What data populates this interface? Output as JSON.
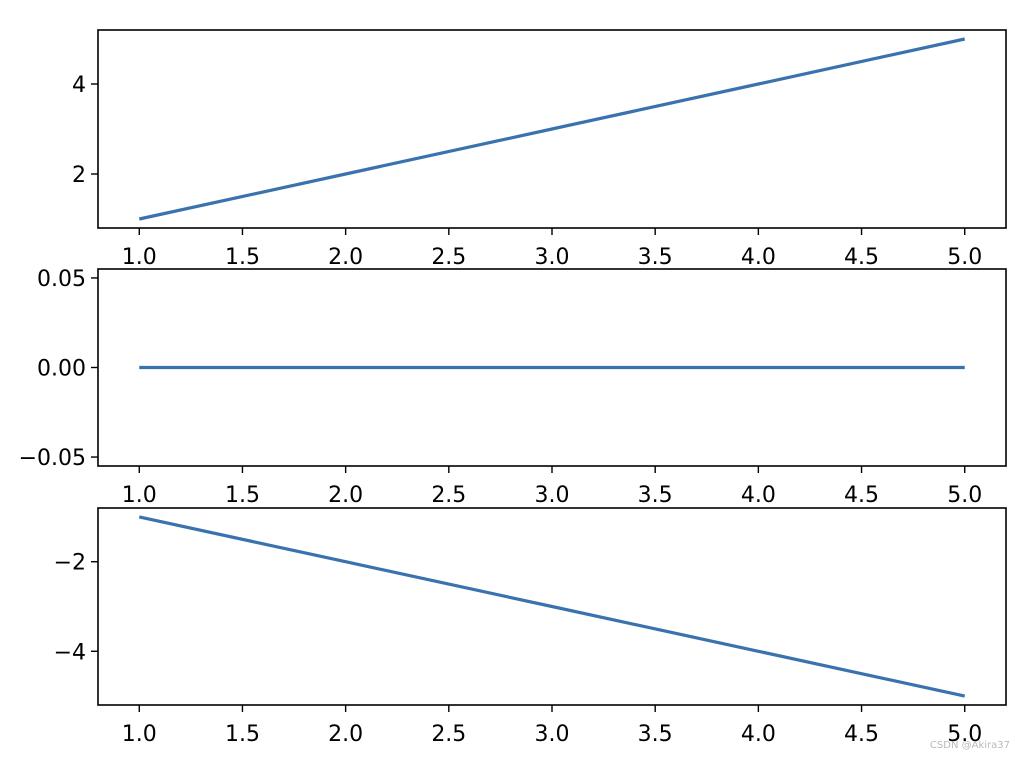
{
  "chart_data": [
    {
      "type": "line",
      "x": [
        1,
        2,
        3,
        4,
        5
      ],
      "series": [
        {
          "values": [
            1,
            2,
            3,
            4,
            5
          ],
          "color": "#3a72b0"
        }
      ],
      "xlim": [
        0.8,
        5.2
      ],
      "ylim": [
        0.8,
        5.2
      ],
      "xticks": [
        "1.0",
        "1.5",
        "2.0",
        "2.5",
        "3.0",
        "3.5",
        "4.0",
        "4.5",
        "5.0"
      ],
      "yticks": [
        "2",
        "4"
      ],
      "grid": false
    },
    {
      "type": "line",
      "x": [
        1,
        2,
        3,
        4,
        5
      ],
      "series": [
        {
          "values": [
            0,
            0,
            0,
            0,
            0
          ],
          "color": "#3a72b0"
        }
      ],
      "xlim": [
        0.8,
        5.2
      ],
      "ylim": [
        -0.055,
        0.055
      ],
      "xticks": [
        "1.0",
        "1.5",
        "2.0",
        "2.5",
        "3.0",
        "3.5",
        "4.0",
        "4.5",
        "5.0"
      ],
      "yticks": [
        "0.05",
        "0.00",
        "−0.05"
      ],
      "grid": false
    },
    {
      "type": "line",
      "x": [
        1,
        2,
        3,
        4,
        5
      ],
      "series": [
        {
          "values": [
            -1,
            -2,
            -3,
            -4,
            -5
          ],
          "color": "#3a72b0"
        }
      ],
      "xlim": [
        0.8,
        5.2
      ],
      "ylim": [
        -5.2,
        -0.8
      ],
      "xticks": [
        "1.0",
        "1.5",
        "2.0",
        "2.5",
        "3.0",
        "3.5",
        "4.0",
        "4.5",
        "5.0"
      ],
      "yticks": [
        "−2",
        "−4"
      ],
      "grid": false
    }
  ],
  "watermark": "CSDN @Akira37"
}
